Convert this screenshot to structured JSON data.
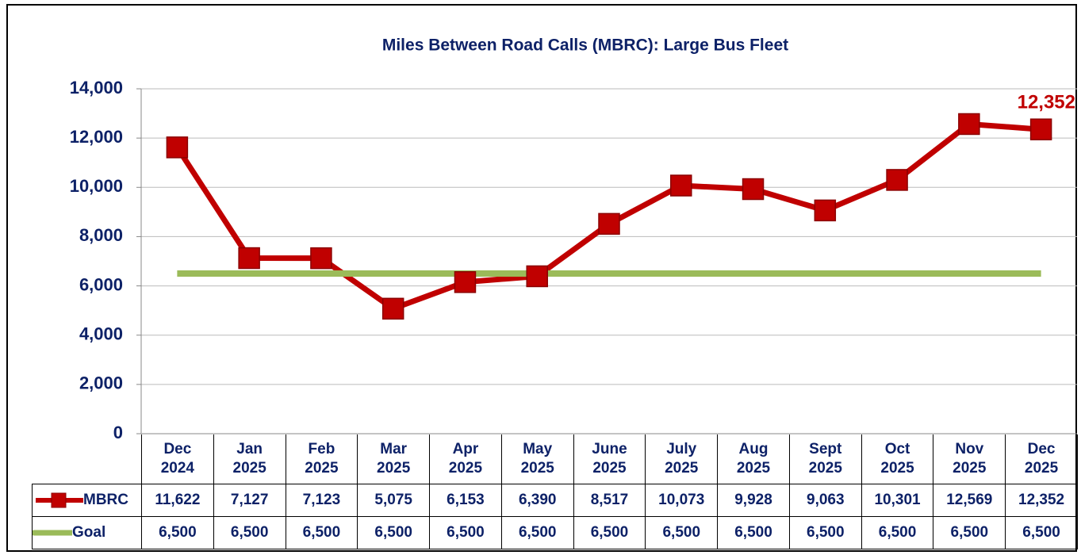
{
  "chart_data": {
    "type": "line",
    "title": "Miles Between Road Calls (MBRC): Large Bus Fleet",
    "categories": [
      "Dec\n2024",
      "Jan\n2025",
      "Feb\n2025",
      "Mar\n2025",
      "Apr\n2025",
      "May\n2025",
      "June\n2025",
      "July\n2025",
      "Aug\n2025",
      "Sept\n2025",
      "Oct\n2025",
      "Nov\n2025",
      "Dec\n2025"
    ],
    "series": [
      {
        "name": "MBRC",
        "color": "#c00000",
        "values": [
          11622,
          7127,
          7123,
          5075,
          6153,
          6390,
          8517,
          10073,
          9928,
          9063,
          10301,
          12569,
          12352
        ],
        "value_labels": [
          "11,622",
          "7,127",
          "7,123",
          "5,075",
          "6,153",
          "6,390",
          "8,517",
          "10,073",
          "9,928",
          "9,063",
          "10,301",
          "12,569",
          "12,352"
        ]
      },
      {
        "name": "Goal",
        "color": "#9bbb59",
        "values": [
          6500,
          6500,
          6500,
          6500,
          6500,
          6500,
          6500,
          6500,
          6500,
          6500,
          6500,
          6500,
          6500
        ],
        "value_labels": [
          "6,500",
          "6,500",
          "6,500",
          "6,500",
          "6,500",
          "6,500",
          "6,500",
          "6,500",
          "6,500",
          "6,500",
          "6,500",
          "6,500",
          "6,500"
        ]
      }
    ],
    "ylim": [
      0,
      14000
    ],
    "yticks": [
      0,
      {
        "value": 2000,
        "label": "2,000"
      },
      {
        "value": 4000,
        "label": "4,000"
      },
      {
        "value": 6000,
        "label": "6,000"
      },
      {
        "value": 8000,
        "label": "8,000"
      },
      {
        "value": 10000,
        "label": "10,000"
      },
      {
        "value": 12000,
        "label": "12,000"
      },
      {
        "value": 14000,
        "label": "14,000"
      }
    ],
    "grid": true
  }
}
